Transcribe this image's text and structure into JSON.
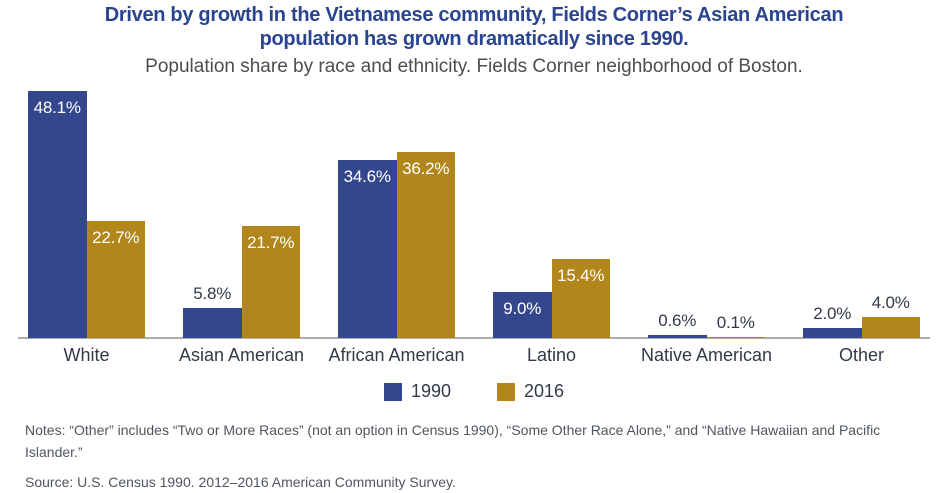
{
  "header": {
    "title_line1": "Driven by growth in the Vietnamese community, Fields Corner’s Asian American",
    "title_line2": "population has grown dramatically since 1990.",
    "subtitle": "Population share by race and ethnicity. Fields Corner neighborhood of Boston."
  },
  "chart_data": {
    "type": "bar",
    "title": "Driven by growth in the Vietnamese community, Fields Corner’s Asian American population has grown dramatically since 1990.",
    "subtitle": "Population share by race and ethnicity. Fields Corner neighborhood of Boston.",
    "categories": [
      "White",
      "Asian American",
      "African American",
      "Latino",
      "Native American",
      "Other"
    ],
    "series": [
      {
        "name": "1990",
        "color": "#35478C",
        "values": [
          48.1,
          5.8,
          34.6,
          9.0,
          0.6,
          2.0
        ]
      },
      {
        "name": "2016",
        "color": "#B1871B",
        "values": [
          22.7,
          21.7,
          36.2,
          15.4,
          0.1,
          4.0
        ]
      }
    ],
    "value_suffix": "%",
    "xlabel": "",
    "ylabel": "",
    "ylim": [
      0,
      50
    ],
    "grid": false,
    "y_axis_visible": false,
    "legend_position": "bottom",
    "data_labels": "shown on every bar, white inside tall bars, dark above short bars"
  },
  "footer": {
    "notes": "Notes: “Other” includes “Two or More Races” (not an option in Census 1990), “Some Other Race Alone,” and “Native Hawaiian and Pacific Islander.”",
    "source": "Source: U.S. Census 1990. 2012–2016 American Community Survey."
  },
  "colors": {
    "title_text": "#2A448F",
    "subtitle_text": "#4D4D4D",
    "bar_1990": "#35478C",
    "bar_2016": "#B1871B",
    "axis_line": "#ADADAD",
    "label_dark": "#323A47",
    "label_inside_bar": "#FFFFFF",
    "notes_text": "#50565E",
    "background": "#FFFFFF"
  }
}
